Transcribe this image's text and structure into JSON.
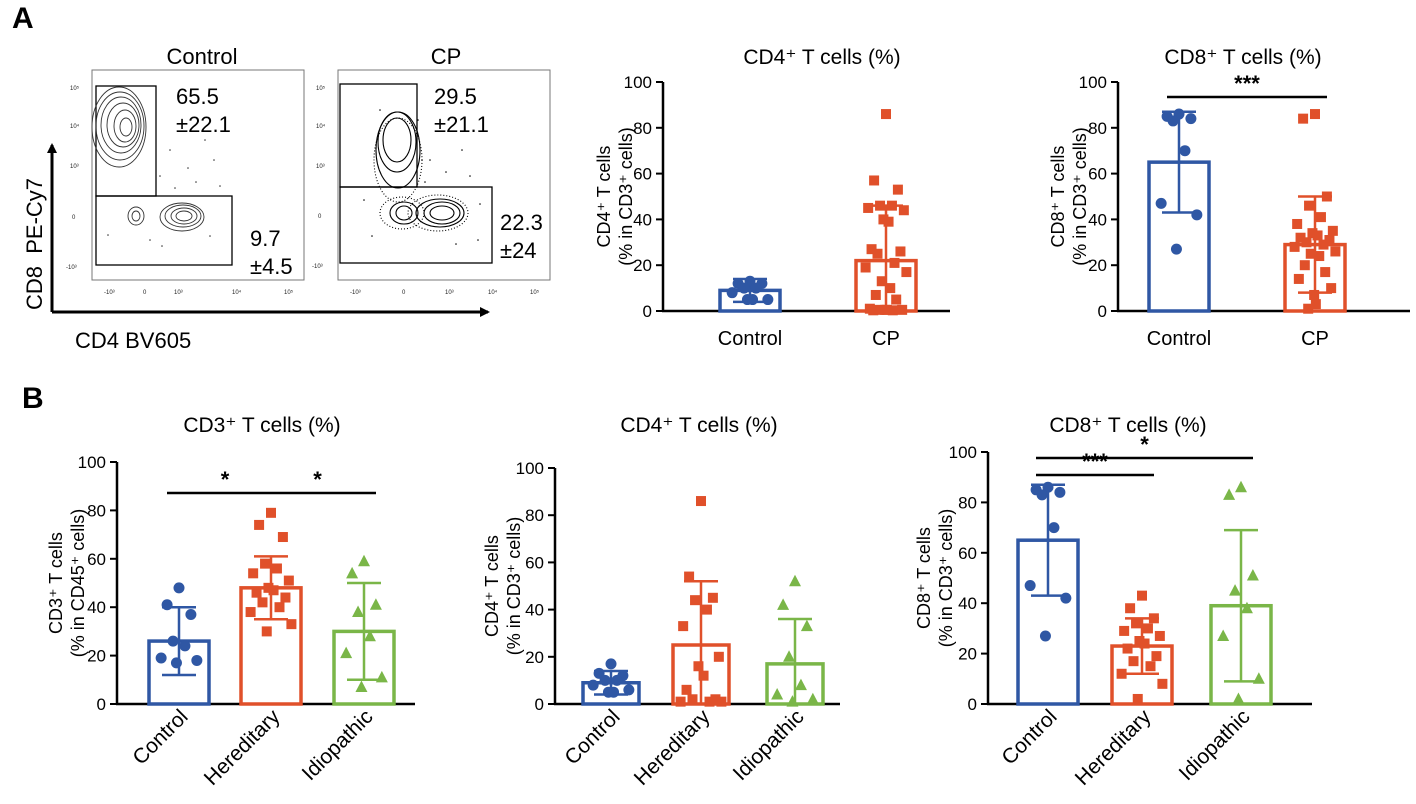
{
  "panel_labels": {
    "a": "A",
    "b": "B"
  },
  "colors": {
    "control": "#2f57a4",
    "cp": "#e0502a",
    "idiopathic": "#7ab648",
    "axis": "#000000"
  },
  "flow": {
    "x_axis_label": "CD4 BV605",
    "y_axis_label": "CD8  PE-Cy7",
    "plots": [
      {
        "title": "Control",
        "upper_gate": [
          "65.5",
          "±22.1"
        ],
        "lower_gate": [
          "9.7",
          "±4.5"
        ],
        "x_ticks": [
          "-10³",
          "0",
          "10³",
          "10⁴",
          "10⁵"
        ],
        "y_ticks": [
          "10⁵",
          "10⁴",
          "10³",
          "0",
          "-10³"
        ]
      },
      {
        "title": "CP",
        "upper_gate": [
          "29.5",
          "±21.1"
        ],
        "lower_gate": [
          "22.3",
          "±24"
        ],
        "x_ticks": [
          "-10³",
          "0",
          "10³",
          "10⁴",
          "10⁵"
        ],
        "y_ticks": [
          "10⁵",
          "10⁴",
          "10³",
          "0",
          "-10³"
        ]
      }
    ]
  },
  "chart_data": [
    {
      "type": "bar",
      "title": "CD4⁺ T cells (%)",
      "ylabel": [
        "CD4⁺ T cells",
        "(% in CD3⁺ cells)"
      ],
      "ylim": [
        0,
        100
      ],
      "yticks": [
        0,
        20,
        40,
        60,
        80,
        100
      ],
      "categories": [
        "Control",
        "CP"
      ],
      "marker": [
        "circle",
        "square"
      ],
      "bars": [
        {
          "category": "Control",
          "mean": 9,
          "sd": 5,
          "points": [
            13,
            12,
            12,
            10,
            10,
            8,
            5,
            5,
            5
          ]
        },
        {
          "category": "CP",
          "mean": 22,
          "sd": 24,
          "points": [
            86,
            57,
            53,
            46,
            46,
            45,
            44,
            40,
            39,
            27,
            26,
            25,
            21,
            19,
            17,
            13,
            10,
            7,
            5,
            1,
            0.5,
            0.5,
            0.5,
            0.5,
            0.3,
            0.3
          ]
        }
      ],
      "significance": []
    },
    {
      "type": "bar",
      "title": "CD8⁺ T cells (%)",
      "ylabel": [
        "CD8⁺ T cells",
        "(% in CD3⁺ cells)"
      ],
      "ylim": [
        0,
        100
      ],
      "yticks": [
        0,
        20,
        40,
        60,
        80,
        100
      ],
      "categories": [
        "Control",
        "CP"
      ],
      "marker": [
        "circle",
        "square"
      ],
      "bars": [
        {
          "category": "Control",
          "mean": 65,
          "sd": 22,
          "points": [
            86,
            85,
            84,
            83,
            70,
            47,
            42,
            27
          ]
        },
        {
          "category": "CP",
          "mean": 29,
          "sd": 21,
          "points": [
            86,
            84,
            50,
            46,
            41,
            38,
            35,
            34,
            33,
            32,
            31,
            30,
            29,
            28,
            26,
            25,
            24,
            20,
            17,
            14,
            10,
            7,
            3,
            1
          ]
        }
      ],
      "significance": [
        {
          "from": 0,
          "to": 1,
          "label": "***"
        }
      ]
    },
    {
      "type": "bar",
      "title": "CD3⁺ T cells (%)",
      "ylabel": [
        "CD3⁺ T cells",
        "(% in CD45⁺ cells)"
      ],
      "ylim": [
        0,
        100
      ],
      "yticks": [
        0,
        20,
        40,
        60,
        80,
        100
      ],
      "categories": [
        "Control",
        "Hereditary",
        "Idiopathic"
      ],
      "marker": [
        "circle",
        "square",
        "triangle"
      ],
      "bars": [
        {
          "category": "Control",
          "mean": 26,
          "sd": 14,
          "points": [
            48,
            41,
            37,
            26,
            24,
            19,
            18,
            17
          ]
        },
        {
          "category": "Hereditary",
          "mean": 48,
          "sd": 13,
          "points": [
            79,
            74,
            69,
            58,
            56,
            54,
            51,
            48,
            47,
            46,
            44,
            42,
            40,
            38,
            33,
            30
          ]
        },
        {
          "category": "Idiopathic",
          "mean": 30,
          "sd": 20,
          "points": [
            59,
            54,
            41,
            38,
            28,
            21,
            11,
            7
          ]
        }
      ],
      "significance": [
        {
          "from": 0,
          "to": 1,
          "label": "*"
        },
        {
          "from": 1,
          "to": 2,
          "label": "*"
        }
      ]
    },
    {
      "type": "bar",
      "title": "CD4⁺ T cells (%)",
      "ylabel": [
        "CD4⁺ T cells",
        "(% in CD3⁺ cells)"
      ],
      "ylim": [
        0,
        100
      ],
      "yticks": [
        0,
        20,
        40,
        60,
        80,
        100
      ],
      "categories": [
        "Control",
        "Hereditary",
        "Idiopathic"
      ],
      "marker": [
        "circle",
        "square",
        "triangle"
      ],
      "bars": [
        {
          "category": "Control",
          "mean": 9,
          "sd": 5,
          "points": [
            17,
            13,
            12,
            10,
            10,
            8,
            6,
            5,
            5
          ]
        },
        {
          "category": "Hereditary",
          "mean": 25,
          "sd": 27,
          "points": [
            86,
            54,
            45,
            44,
            40,
            33,
            20,
            16,
            12,
            6,
            2,
            2,
            1,
            1,
            1
          ]
        },
        {
          "category": "Idiopathic",
          "mean": 17,
          "sd": 19,
          "points": [
            52,
            42,
            33,
            20,
            8,
            4,
            2,
            1
          ]
        }
      ],
      "significance": []
    },
    {
      "type": "bar",
      "title": "CD8⁺ T cells (%)",
      "ylabel": [
        "CD8⁺ T cells",
        "(% in CD3⁺ cells)"
      ],
      "ylim": [
        0,
        100
      ],
      "yticks": [
        0,
        20,
        40,
        60,
        80,
        100
      ],
      "categories": [
        "Control",
        "Hereditary",
        "Idiopathic"
      ],
      "marker": [
        "circle",
        "square",
        "triangle"
      ],
      "bars": [
        {
          "category": "Control",
          "mean": 65,
          "sd": 22,
          "points": [
            86,
            85,
            84,
            83,
            70,
            47,
            42,
            27
          ]
        },
        {
          "category": "Hereditary",
          "mean": 23,
          "sd": 11,
          "points": [
            43,
            38,
            34,
            32,
            30,
            29,
            27,
            25,
            24,
            22,
            19,
            17,
            15,
            12,
            8,
            2
          ]
        },
        {
          "category": "Idiopathic",
          "mean": 39,
          "sd": 30,
          "points": [
            86,
            83,
            51,
            45,
            38,
            27,
            10,
            2
          ]
        }
      ],
      "significance": [
        {
          "from": 0,
          "to": 1,
          "label": "***"
        },
        {
          "from": 0,
          "to": 2,
          "label": "*"
        }
      ]
    }
  ]
}
